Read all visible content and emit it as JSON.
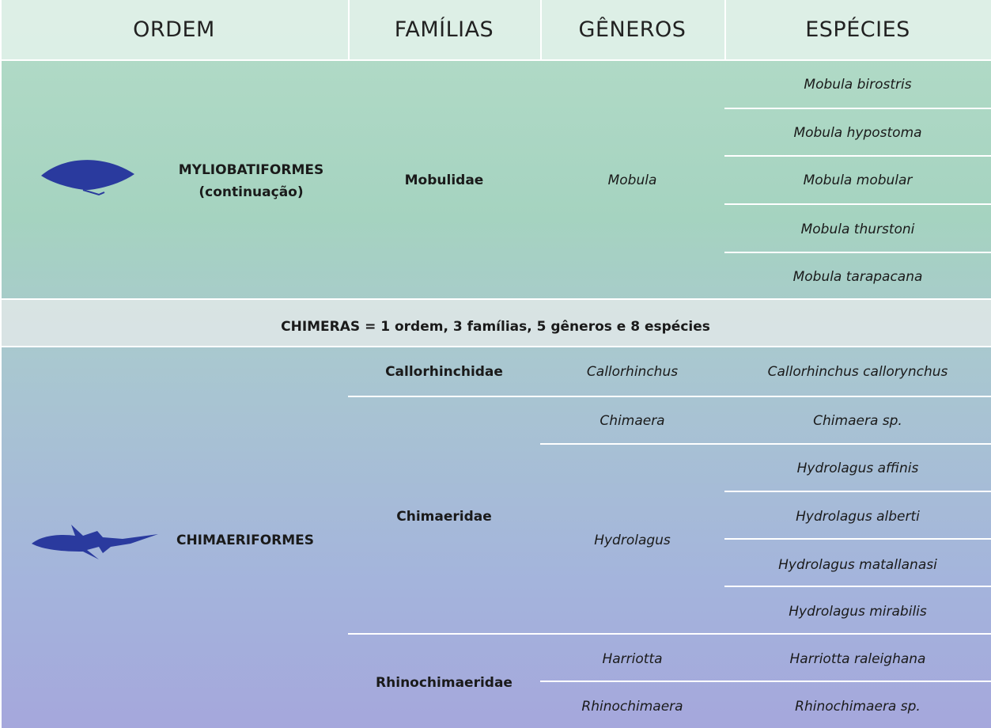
{
  "header": {
    "columns": [
      "ORDEM",
      "FAMÍLIAS",
      "GÊNEROS",
      "ESPÉCIES"
    ]
  },
  "sections": [
    {
      "order": [
        "MYLIOBATIFORMES",
        "(continuação)"
      ],
      "families": [
        "Mobulidae"
      ],
      "genera": [
        "Mobula"
      ],
      "species": [
        "Mobula birostris",
        "Mobula hypostoma",
        "Mobula mobular",
        "Mobula thurstoni",
        "Mobula tarapacana"
      ]
    },
    {
      "order": [
        "CHIMAERIFORMES"
      ],
      "families": [
        "Callorhinchidae",
        "Chimaeridae",
        "Rhinochimaeridae"
      ],
      "genera": [
        "Callorhinchus",
        "Chimaera",
        "Hydrolagus",
        "Harriotta",
        "Rhinochimaera"
      ],
      "species": [
        "Callorhinchus callorynchus",
        "Chimaera sp.",
        "Hydrolagus affinis",
        "Hydrolagus alberti",
        "Hydrolagus matallanasi",
        "Hydrolagus mirabilis",
        "Harriotta raleighana",
        "Rhinochimaera sp."
      ]
    }
  ],
  "summary": "CHIMERAS = 1 ordem, 3 famílias, 5 gêneros e 8 espécies"
}
